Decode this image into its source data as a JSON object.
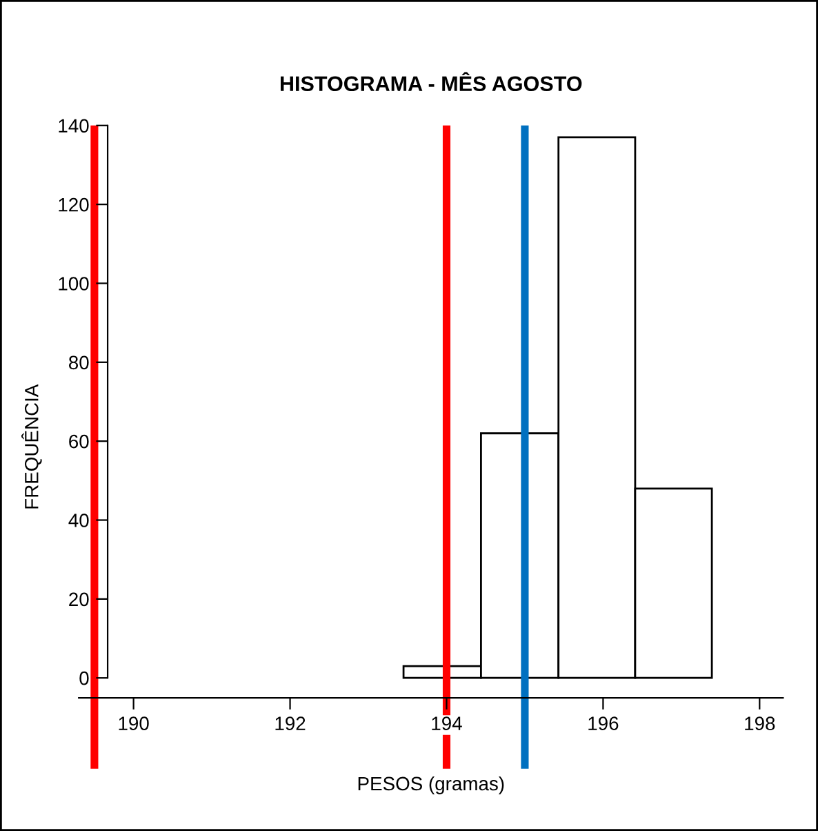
{
  "chart_data": {
    "type": "histogram",
    "title": "HISTOGRAMA - MÊS AGOSTO",
    "xlabel": "PESOS (gramas)",
    "ylabel": "FREQUÊNCIA",
    "bins": [
      193.45,
      194.44,
      195.43,
      196.41,
      197.39
    ],
    "values": [
      3,
      62,
      137,
      48
    ],
    "color": "#ffffff",
    "xlim": [
      189.3,
      198.3
    ],
    "xticks": [
      190,
      192,
      194,
      196,
      198
    ],
    "ylim": [
      -23,
      140
    ],
    "yticks": [
      0,
      20,
      40,
      60,
      80,
      100,
      120,
      140
    ],
    "grid": false,
    "ref_lines": [
      {
        "axis": "x",
        "value": 189.5,
        "color": "#ff0000"
      },
      {
        "axis": "x",
        "value": 194,
        "color": "#ff0000"
      },
      {
        "axis": "x",
        "value": 195,
        "color": "#0070c0"
      }
    ]
  }
}
